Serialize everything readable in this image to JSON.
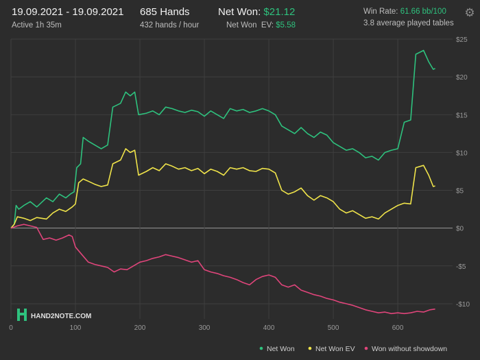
{
  "header": {
    "date_range": "19.09.2021 - 19.09.2021",
    "active": "Active 1h 35m",
    "hands": "685 Hands",
    "hands_rate": "432 hands / hour",
    "net_won_label": "Net Won: ",
    "net_won_value": "$21.12",
    "net_won_ev_label": "Net Won  EV: ",
    "net_won_ev_value": "$5.58",
    "win_rate_label": "Win Rate: ",
    "win_rate_value": "61.66 bb/100",
    "avg_tables": "3.8 average played tables"
  },
  "logo": {
    "text": "HAND2NOTE.COM"
  },
  "colors": {
    "net_won": "#2ec27e",
    "net_won_ev": "#f0e44a",
    "won_without_showdown": "#e0457b",
    "background": "#2c2c2c",
    "grid": "#3f3f3f"
  },
  "chart_data": {
    "type": "line",
    "xlim": [
      0,
      685
    ],
    "ylim": [
      -12,
      25
    ],
    "x_ticks": [
      0,
      100,
      200,
      300,
      400,
      500,
      600
    ],
    "y_ticks": [
      25,
      20,
      15,
      10,
      5,
      0,
      -5,
      -10
    ],
    "x_tick_labels": [
      "0",
      "100",
      "200",
      "300",
      "400",
      "500",
      "600"
    ],
    "y_tick_labels": [
      "$25",
      "$20",
      "$15",
      "$10",
      "$5",
      "$0",
      "-$5",
      "-$10"
    ],
    "grid": true,
    "legend_position": "bottom-right",
    "series": [
      {
        "name": "Net Won",
        "color": "#2ec27e",
        "points": [
          [
            0,
            0
          ],
          [
            5,
            0.5
          ],
          [
            8,
            3
          ],
          [
            12,
            2.5
          ],
          [
            20,
            3
          ],
          [
            30,
            3.5
          ],
          [
            40,
            2.8
          ],
          [
            55,
            4
          ],
          [
            65,
            3.5
          ],
          [
            75,
            4.5
          ],
          [
            85,
            4
          ],
          [
            92,
            4.5
          ],
          [
            98,
            4.8
          ],
          [
            102,
            8
          ],
          [
            108,
            8.5
          ],
          [
            112,
            12
          ],
          [
            120,
            11.5
          ],
          [
            130,
            11
          ],
          [
            140,
            10.5
          ],
          [
            150,
            11
          ],
          [
            158,
            16
          ],
          [
            170,
            16.5
          ],
          [
            178,
            18
          ],
          [
            185,
            17.5
          ],
          [
            192,
            18
          ],
          [
            198,
            15
          ],
          [
            210,
            15.2
          ],
          [
            220,
            15.5
          ],
          [
            230,
            15
          ],
          [
            240,
            16
          ],
          [
            250,
            15.8
          ],
          [
            260,
            15.5
          ],
          [
            270,
            15.3
          ],
          [
            280,
            15.6
          ],
          [
            290,
            15.4
          ],
          [
            300,
            14.8
          ],
          [
            310,
            15.5
          ],
          [
            320,
            15
          ],
          [
            330,
            14.5
          ],
          [
            340,
            15.8
          ],
          [
            350,
            15.5
          ],
          [
            360,
            15.7
          ],
          [
            370,
            15.3
          ],
          [
            380,
            15.5
          ],
          [
            390,
            15.8
          ],
          [
            400,
            15.5
          ],
          [
            410,
            15
          ],
          [
            420,
            13.5
          ],
          [
            430,
            13
          ],
          [
            440,
            12.5
          ],
          [
            450,
            13.3
          ],
          [
            460,
            12.5
          ],
          [
            470,
            12
          ],
          [
            480,
            12.7
          ],
          [
            490,
            12.3
          ],
          [
            500,
            11.3
          ],
          [
            510,
            10.8
          ],
          [
            520,
            10.3
          ],
          [
            530,
            10.5
          ],
          [
            540,
            10
          ],
          [
            550,
            9.3
          ],
          [
            560,
            9.5
          ],
          [
            570,
            9
          ],
          [
            580,
            10
          ],
          [
            590,
            10.3
          ],
          [
            600,
            10.5
          ],
          [
            610,
            14
          ],
          [
            620,
            14.3
          ],
          [
            628,
            23
          ],
          [
            640,
            23.5
          ],
          [
            648,
            22
          ],
          [
            655,
            21
          ],
          [
            658,
            21.12
          ]
        ]
      },
      {
        "name": "Net Won  EV",
        "color": "#f0e44a",
        "points": [
          [
            0,
            0
          ],
          [
            5,
            0.5
          ],
          [
            10,
            1.5
          ],
          [
            20,
            1.3
          ],
          [
            30,
            1
          ],
          [
            40,
            1.4
          ],
          [
            55,
            1.2
          ],
          [
            65,
            2
          ],
          [
            75,
            2.5
          ],
          [
            85,
            2.2
          ],
          [
            95,
            2.8
          ],
          [
            100,
            3.2
          ],
          [
            105,
            6
          ],
          [
            112,
            6.5
          ],
          [
            120,
            6.2
          ],
          [
            130,
            5.8
          ],
          [
            140,
            5.5
          ],
          [
            150,
            5.7
          ],
          [
            158,
            8.5
          ],
          [
            170,
            9
          ],
          [
            178,
            10.5
          ],
          [
            185,
            10
          ],
          [
            192,
            10.3
          ],
          [
            198,
            7
          ],
          [
            210,
            7.5
          ],
          [
            220,
            8
          ],
          [
            230,
            7.6
          ],
          [
            240,
            8.5
          ],
          [
            250,
            8.2
          ],
          [
            260,
            7.8
          ],
          [
            270,
            8
          ],
          [
            280,
            7.6
          ],
          [
            290,
            7.9
          ],
          [
            300,
            7.2
          ],
          [
            310,
            7.8
          ],
          [
            320,
            7.5
          ],
          [
            330,
            7
          ],
          [
            340,
            8
          ],
          [
            350,
            7.8
          ],
          [
            360,
            8
          ],
          [
            370,
            7.6
          ],
          [
            380,
            7.5
          ],
          [
            390,
            7.9
          ],
          [
            400,
            7.8
          ],
          [
            410,
            7.3
          ],
          [
            420,
            5
          ],
          [
            430,
            4.5
          ],
          [
            440,
            4.8
          ],
          [
            450,
            5.3
          ],
          [
            460,
            4.3
          ],
          [
            470,
            3.7
          ],
          [
            480,
            4.3
          ],
          [
            490,
            4
          ],
          [
            500,
            3.5
          ],
          [
            510,
            2.5
          ],
          [
            520,
            2
          ],
          [
            530,
            2.3
          ],
          [
            540,
            1.8
          ],
          [
            550,
            1.3
          ],
          [
            560,
            1.5
          ],
          [
            570,
            1.2
          ],
          [
            580,
            2
          ],
          [
            590,
            2.5
          ],
          [
            600,
            3
          ],
          [
            610,
            3.3
          ],
          [
            620,
            3.2
          ],
          [
            628,
            8
          ],
          [
            640,
            8.3
          ],
          [
            648,
            7
          ],
          [
            655,
            5.5
          ],
          [
            658,
            5.58
          ]
        ]
      },
      {
        "name": "Won without showdown",
        "color": "#e0457b",
        "points": [
          [
            0,
            0
          ],
          [
            10,
            0.3
          ],
          [
            20,
            0.5
          ],
          [
            30,
            0.3
          ],
          [
            40,
            0.1
          ],
          [
            50,
            -1.5
          ],
          [
            60,
            -1.3
          ],
          [
            70,
            -1.6
          ],
          [
            80,
            -1.3
          ],
          [
            90,
            -0.9
          ],
          [
            95,
            -1.1
          ],
          [
            100,
            -2.5
          ],
          [
            110,
            -3.5
          ],
          [
            120,
            -4.5
          ],
          [
            130,
            -4.8
          ],
          [
            140,
            -5
          ],
          [
            150,
            -5.2
          ],
          [
            160,
            -5.8
          ],
          [
            170,
            -5.4
          ],
          [
            180,
            -5.5
          ],
          [
            190,
            -5
          ],
          [
            200,
            -4.5
          ],
          [
            210,
            -4.3
          ],
          [
            220,
            -4
          ],
          [
            230,
            -3.8
          ],
          [
            240,
            -3.5
          ],
          [
            250,
            -3.7
          ],
          [
            260,
            -3.9
          ],
          [
            270,
            -4.2
          ],
          [
            280,
            -4.5
          ],
          [
            290,
            -4.3
          ],
          [
            300,
            -5.5
          ],
          [
            310,
            -5.8
          ],
          [
            320,
            -6
          ],
          [
            330,
            -6.3
          ],
          [
            340,
            -6.5
          ],
          [
            350,
            -6.8
          ],
          [
            360,
            -7.2
          ],
          [
            370,
            -7.5
          ],
          [
            380,
            -6.8
          ],
          [
            390,
            -6.4
          ],
          [
            400,
            -6.2
          ],
          [
            410,
            -6.5
          ],
          [
            420,
            -7.5
          ],
          [
            430,
            -7.8
          ],
          [
            440,
            -7.5
          ],
          [
            450,
            -8.2
          ],
          [
            460,
            -8.5
          ],
          [
            470,
            -8.8
          ],
          [
            480,
            -9
          ],
          [
            490,
            -9.3
          ],
          [
            500,
            -9.5
          ],
          [
            510,
            -9.8
          ],
          [
            520,
            -10
          ],
          [
            530,
            -10.2
          ],
          [
            540,
            -10.5
          ],
          [
            550,
            -10.8
          ],
          [
            560,
            -11
          ],
          [
            570,
            -11.2
          ],
          [
            580,
            -11.1
          ],
          [
            590,
            -11.3
          ],
          [
            600,
            -11.2
          ],
          [
            610,
            -11.3
          ],
          [
            620,
            -11.2
          ],
          [
            630,
            -11
          ],
          [
            640,
            -11.1
          ],
          [
            650,
            -10.8
          ],
          [
            658,
            -10.7
          ]
        ]
      }
    ]
  }
}
